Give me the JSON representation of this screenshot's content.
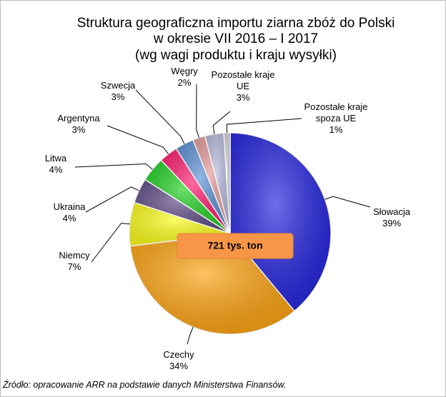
{
  "chart_data": {
    "type": "pie",
    "title": [
      "Struktura geograficzna importu ziarna zbóż do Polski",
      "w okresie VII 2016 – I 2017",
      "(wg wagi produktu i kraju wysyłki)"
    ],
    "categories": [
      "Słowacja",
      "Czechy",
      "Niemcy",
      "Ukraina",
      "Litwa",
      "Argentyna",
      "Szwecja",
      "Węgry",
      "Pozostałe kraje UE",
      "Pozostałe kraje spoza UE"
    ],
    "values": [
      39,
      34,
      7,
      4,
      4,
      3,
      3,
      2,
      3,
      1
    ],
    "value_labels": [
      "39%",
      "34%",
      "7%",
      "4%",
      "4%",
      "3%",
      "3%",
      "2%",
      "3%",
      "1%"
    ],
    "colors": [
      "#2323e0",
      "#ffa30f",
      "#ffff1a",
      "#5e4a86",
      "#1fd01f",
      "#ff1a6e",
      "#5b8fd6",
      "#e69a9a",
      "#b9b9dc",
      "#cfcfd6"
    ],
    "annotation": "721 tys. ton",
    "source": "Źródło: opracowanie ARR na podstawie danych Ministerstwa Finansów."
  }
}
